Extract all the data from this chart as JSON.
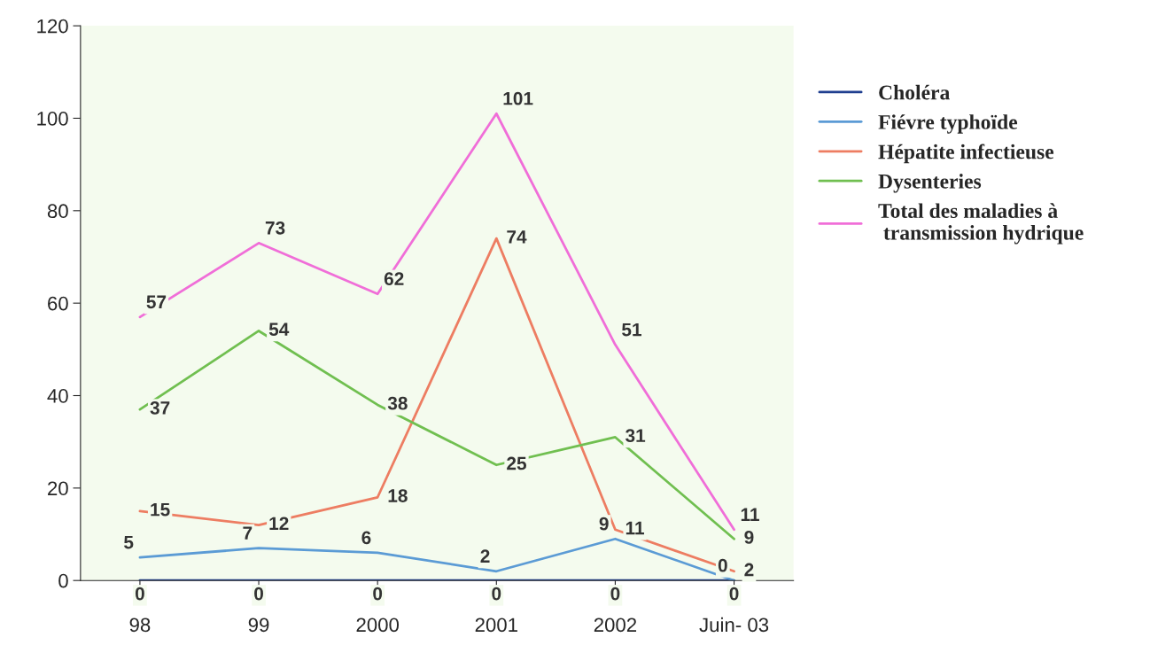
{
  "chart_data": {
    "type": "line",
    "categories": [
      "98",
      "99",
      "2000",
      "2001",
      "2002",
      "Juin- 03"
    ],
    "series": [
      {
        "name": "Choléra",
        "color": "#1f3f8f",
        "values": [
          0,
          0,
          0,
          0,
          0,
          0
        ]
      },
      {
        "name": "Fiévre typhoïde",
        "color": "#5b9bd5",
        "values": [
          5,
          7,
          6,
          2,
          9,
          0
        ]
      },
      {
        "name": "Hépatite infectieuse",
        "color": "#ed7d62",
        "values": [
          15,
          12,
          18,
          74,
          11,
          2
        ]
      },
      {
        "name": "Dysenteries",
        "color": "#70bf50",
        "values": [
          37,
          54,
          38,
          25,
          31,
          9
        ]
      },
      {
        "name": "Total des maladies à\n transmission hydrique",
        "color": "#f06ed8",
        "values": [
          57,
          73,
          62,
          101,
          51,
          11
        ]
      }
    ],
    "ylim": [
      0,
      120
    ],
    "yticks": [
      0,
      20,
      40,
      60,
      80,
      100,
      120
    ],
    "data_labels": true,
    "grid": false,
    "legend": "right",
    "marker": "none",
    "line_style": "solid"
  }
}
